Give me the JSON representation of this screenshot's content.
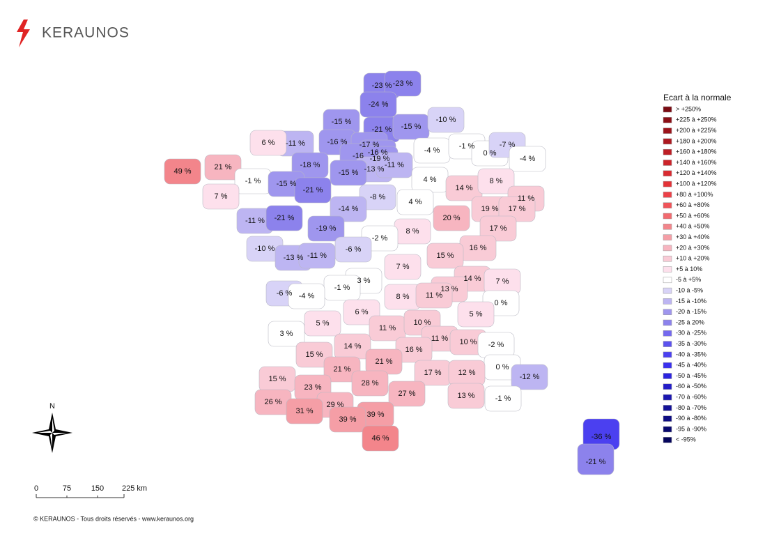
{
  "header": {
    "logo": "KERAUNOS"
  },
  "legend": {
    "title": "Ecart à la normale",
    "items": [
      {
        "label": "> +250%",
        "color": "#7a0b12"
      },
      {
        "label": "+225 à +250%",
        "color": "#8b0f16"
      },
      {
        "label": "+200 à +225%",
        "color": "#9c141b"
      },
      {
        "label": "+180 à +200%",
        "color": "#ad1920"
      },
      {
        "label": "+160 à +180%",
        "color": "#bd1e25"
      },
      {
        "label": "+140 à +160%",
        "color": "#cc242a"
      },
      {
        "label": "+120 à +140%",
        "color": "#d92b31"
      },
      {
        "label": "+100 à +120%",
        "color": "#e43338"
      },
      {
        "label": "+80 à +100%",
        "color": "#ec4148"
      },
      {
        "label": "+60 à +80%",
        "color": "#f05459"
      },
      {
        "label": "+50 à +60%",
        "color": "#f26a6f"
      },
      {
        "label": "+40 à +50%",
        "color": "#f3858b"
      },
      {
        "label": "+30 à +40%",
        "color": "#f59ea6"
      },
      {
        "label": "+20 à +30%",
        "color": "#f7b5c0"
      },
      {
        "label": "+10 à +20%",
        "color": "#f9cbd6"
      },
      {
        "label": "+5 à 10%",
        "color": "#fde0ec"
      },
      {
        "label": "-5 à +5%",
        "color": "#ffffff"
      },
      {
        "label": "-10 à -5%",
        "color": "#d8d3f7"
      },
      {
        "label": "-15 à -10%",
        "color": "#bdb5f2"
      },
      {
        "label": "-20 à -15%",
        "color": "#9f96ee"
      },
      {
        "label": "-25 à 20%",
        "color": "#8c82ec"
      },
      {
        "label": "-30 à -25%",
        "color": "#7469ee"
      },
      {
        "label": "-35 à -30%",
        "color": "#5c52ef"
      },
      {
        "label": "-40 à -35%",
        "color": "#4b40f0"
      },
      {
        "label": "-45 à -40%",
        "color": "#3a30ee"
      },
      {
        "label": "-50 à -45%",
        "color": "#2c24e0"
      },
      {
        "label": "-60 à -50%",
        "color": "#231dc8"
      },
      {
        "label": "-70 à -60%",
        "color": "#1b17b0"
      },
      {
        "label": "-80 à -70%",
        "color": "#141298"
      },
      {
        "label": "-90 à -80%",
        "color": "#0e0d82"
      },
      {
        "label": "-95 à -90%",
        "color": "#09096e"
      },
      {
        "label": "< -95%",
        "color": "#05055c"
      }
    ]
  },
  "departments": [
    {
      "label": "-23 %",
      "color": "#8c82ec"
    },
    {
      "label": "-23 %",
      "color": "#8c82ec"
    },
    {
      "label": "-24 %",
      "color": "#8c82ec"
    },
    {
      "label": "-15 %",
      "color": "#9f96ee"
    },
    {
      "label": "-21 %",
      "color": "#8c82ec"
    },
    {
      "label": "-15 %",
      "color": "#9f96ee"
    },
    {
      "label": "-10 %",
      "color": "#d8d3f7"
    },
    {
      "label": "-11 %",
      "color": "#bdb5f2"
    },
    {
      "label": "6 %",
      "color": "#fde0ec"
    },
    {
      "label": "-16 %",
      "color": "#9f96ee"
    },
    {
      "label": "-17 %",
      "color": "#9f96ee"
    },
    {
      "label": "-16 %",
      "color": "#9f96ee"
    },
    {
      "label": "-16",
      "color": "#9f96ee"
    },
    {
      "label": "-19 %",
      "color": "#9f96ee"
    },
    {
      "label": "-13 %",
      "color": "#bdb5f2"
    },
    {
      "label": "-11 %",
      "color": "#bdb5f2"
    },
    {
      "label": "-4 %",
      "color": "#ffffff"
    },
    {
      "label": "-1 %",
      "color": "#ffffff"
    },
    {
      "label": "0 %",
      "color": "#ffffff"
    },
    {
      "label": "-7 %",
      "color": "#d8d3f7"
    },
    {
      "label": "-4 %",
      "color": "#ffffff"
    },
    {
      "label": "49 %",
      "color": "#f3858b"
    },
    {
      "label": "21 %",
      "color": "#f7b5c0"
    },
    {
      "label": "-18 %",
      "color": "#9f96ee"
    },
    {
      "label": "-15 %",
      "color": "#9f96ee"
    },
    {
      "label": "-1 %",
      "color": "#ffffff"
    },
    {
      "label": "-15 %",
      "color": "#9f96ee"
    },
    {
      "label": "-21 %",
      "color": "#8c82ec"
    },
    {
      "label": "4 %",
      "color": "#ffffff"
    },
    {
      "label": "14 %",
      "color": "#f9cbd6"
    },
    {
      "label": "8 %",
      "color": "#fde0ec"
    },
    {
      "label": "7 %",
      "color": "#fde0ec"
    },
    {
      "label": "-8 %",
      "color": "#d8d3f7"
    },
    {
      "label": "4 %",
      "color": "#ffffff"
    },
    {
      "label": "11 %",
      "color": "#f9cbd6"
    },
    {
      "label": "-14 %",
      "color": "#bdb5f2"
    },
    {
      "label": "-11 %",
      "color": "#bdb5f2"
    },
    {
      "label": "-21 %",
      "color": "#8c82ec"
    },
    {
      "label": "19 %",
      "color": "#f9cbd6"
    },
    {
      "label": "17 %",
      "color": "#f9cbd6"
    },
    {
      "label": "20 %",
      "color": "#f7b5c0"
    },
    {
      "label": "-19 %",
      "color": "#9f96ee"
    },
    {
      "label": "8 %",
      "color": "#fde0ec"
    },
    {
      "label": "17 %",
      "color": "#f9cbd6"
    },
    {
      "label": "-2 %",
      "color": "#ffffff"
    },
    {
      "label": "-10 %",
      "color": "#d8d3f7"
    },
    {
      "label": "-6 %",
      "color": "#d8d3f7"
    },
    {
      "label": "16 %",
      "color": "#f9cbd6"
    },
    {
      "label": "-13 %",
      "color": "#bdb5f2"
    },
    {
      "label": "-11 %",
      "color": "#bdb5f2"
    },
    {
      "label": "15 %",
      "color": "#f9cbd6"
    },
    {
      "label": "7 %",
      "color": "#fde0ec"
    },
    {
      "label": "14 %",
      "color": "#f9cbd6"
    },
    {
      "label": "7 %",
      "color": "#fde0ec"
    },
    {
      "label": "3 %",
      "color": "#ffffff"
    },
    {
      "label": "-1 %",
      "color": "#ffffff"
    },
    {
      "label": "-6 %",
      "color": "#d8d3f7"
    },
    {
      "label": "-4 %",
      "color": "#ffffff"
    },
    {
      "label": "13 %",
      "color": "#f9cbd6"
    },
    {
      "label": "8 %",
      "color": "#fde0ec"
    },
    {
      "label": "11 %",
      "color": "#f9cbd6"
    },
    {
      "label": "0 %",
      "color": "#ffffff"
    },
    {
      "label": "5 %",
      "color": "#fde0ec"
    },
    {
      "label": "6 %",
      "color": "#fde0ec"
    },
    {
      "label": "5 %",
      "color": "#fde0ec"
    },
    {
      "label": "11 %",
      "color": "#f9cbd6"
    },
    {
      "label": "10 %",
      "color": "#f9cbd6"
    },
    {
      "label": "11 %",
      "color": "#f9cbd6"
    },
    {
      "label": "10 %",
      "color": "#f9cbd6"
    },
    {
      "label": "-2 %",
      "color": "#ffffff"
    },
    {
      "label": "3 %",
      "color": "#ffffff"
    },
    {
      "label": "14 %",
      "color": "#f9cbd6"
    },
    {
      "label": "16 %",
      "color": "#f9cbd6"
    },
    {
      "label": "15 %",
      "color": "#f9cbd6"
    },
    {
      "label": "21 %",
      "color": "#f7b5c0"
    },
    {
      "label": "21 %",
      "color": "#f7b5c0"
    },
    {
      "label": "0 %",
      "color": "#ffffff"
    },
    {
      "label": "17 %",
      "color": "#f9cbd6"
    },
    {
      "label": "12 %",
      "color": "#f9cbd6"
    },
    {
      "label": "-12 %",
      "color": "#bdb5f2"
    },
    {
      "label": "15 %",
      "color": "#f9cbd6"
    },
    {
      "label": "23 %",
      "color": "#f7b5c0"
    },
    {
      "label": "28 %",
      "color": "#f7b5c0"
    },
    {
      "label": "27 %",
      "color": "#f7b5c0"
    },
    {
      "label": "13 %",
      "color": "#f9cbd6"
    },
    {
      "label": "-1 %",
      "color": "#ffffff"
    },
    {
      "label": "26 %",
      "color": "#f7b5c0"
    },
    {
      "label": "29 %",
      "color": "#f7b5c0"
    },
    {
      "label": "31 %",
      "color": "#f59ea6"
    },
    {
      "label": "39 %",
      "color": "#f59ea6"
    },
    {
      "label": "39 %",
      "color": "#f59ea6"
    },
    {
      "label": "46 %",
      "color": "#f3858b"
    },
    {
      "label": "-36 %",
      "color": "#4b40f0"
    },
    {
      "label": "-21 %",
      "color": "#8c82ec"
    }
  ],
  "compass": {
    "north": "N"
  },
  "scale_bar": {
    "labels": [
      "0",
      "75",
      "150",
      "225 km"
    ]
  },
  "footer": {
    "copyright": "© KERAUNOS - Tous droits réservés - www.keraunos.org"
  }
}
